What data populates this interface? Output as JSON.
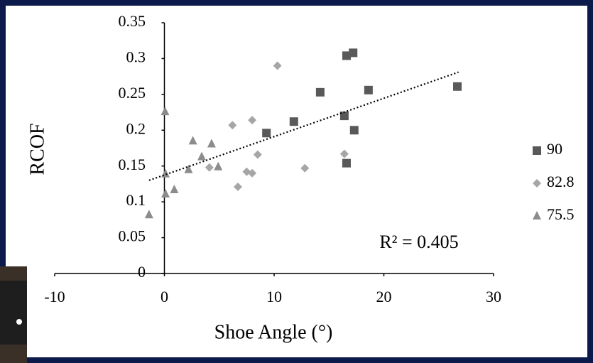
{
  "chart_data": {
    "type": "scatter",
    "x_label": "Shoe Angle (°)",
    "y_label": "RCOF",
    "xlim": [
      -10,
      30
    ],
    "xticks": [
      -10,
      0,
      10,
      20,
      30
    ],
    "ylim": [
      0,
      0.35
    ],
    "yticks": [
      0,
      0.05,
      0.1,
      0.15,
      0.2,
      0.25,
      0.3,
      0.35
    ],
    "series": [
      {
        "name": "90",
        "color": "#595959",
        "marker": "square",
        "x": [
          16.6,
          17.2,
          14.2,
          18.6,
          26.7,
          11.8,
          16.4,
          17.3,
          9.3,
          16.6
        ],
        "values": [
          0.304,
          0.308,
          0.253,
          0.256,
          0.261,
          0.212,
          0.22,
          0.2,
          0.196,
          0.154
        ]
      },
      {
        "name": "82.8",
        "color": "#a6a6a6",
        "marker": "diamond",
        "x": [
          10.3,
          8.0,
          6.2,
          8.5,
          16.4,
          12.8,
          4.1,
          7.5,
          8.0,
          6.7
        ],
        "values": [
          0.29,
          0.214,
          0.207,
          0.166,
          0.167,
          0.147,
          0.148,
          0.142,
          0.14,
          0.121
        ]
      },
      {
        "name": "75.5",
        "color": "#8c8c8c",
        "marker": "triangle",
        "x": [
          0.06,
          2.6,
          4.3,
          3.4,
          4.9,
          2.2,
          0.1,
          0.9,
          0.1,
          -1.4
        ],
        "values": [
          0.226,
          0.185,
          0.181,
          0.163,
          0.149,
          0.145,
          0.139,
          0.117,
          0.111,
          0.082
        ]
      }
    ],
    "trendline": {
      "x": [
        -1.4,
        26.8
      ],
      "values": [
        0.13,
        0.281
      ],
      "color": "#000000"
    },
    "annotation": "R² = 0.405",
    "legend": "right"
  }
}
